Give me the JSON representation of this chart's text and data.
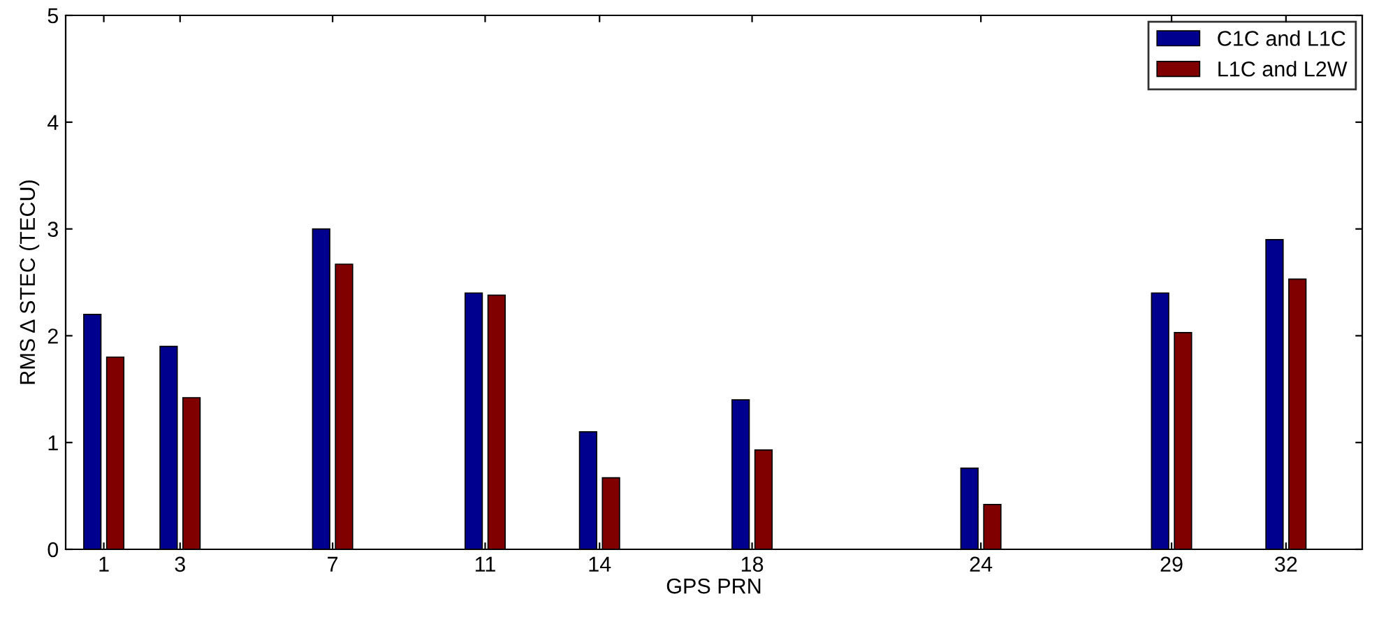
{
  "chart_data": {
    "type": "bar",
    "xlabel": "GPS PRN",
    "ylabel": "RMS Δ STEC (TECU)",
    "x": [
      1,
      3,
      7,
      11,
      14,
      18,
      24,
      29,
      32
    ],
    "series": [
      {
        "name": "C1C and L1C",
        "color": "#00008f",
        "values": [
          2.2,
          1.9,
          3.0,
          2.4,
          1.1,
          1.4,
          0.76,
          2.4,
          2.9
        ]
      },
      {
        "name": "L1C and L2W",
        "color": "#800000",
        "values": [
          1.8,
          1.42,
          2.67,
          2.38,
          0.67,
          0.93,
          0.42,
          2.03,
          2.53
        ]
      }
    ],
    "xlim": [
      0,
      34
    ],
    "xticks": [
      1,
      3,
      7,
      11,
      14,
      18,
      24,
      29,
      32
    ],
    "ylim": [
      0,
      5
    ],
    "yticks": [
      0,
      1,
      2,
      3,
      4,
      5
    ],
    "grid": false,
    "legend": "top right"
  }
}
